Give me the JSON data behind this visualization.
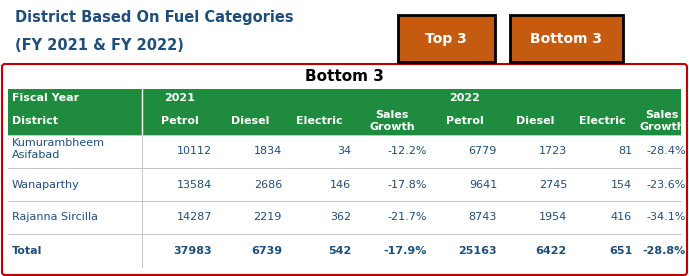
{
  "title_line1": "District Based On Fuel Categories",
  "title_line2": "(FY 2021 & FY 2022)",
  "title_color": "#1F4E79",
  "section_title": "Bottom 3",
  "btn_top3": "Top 3",
  "btn_bottom3": "Bottom 3",
  "btn_color": "#C55A11",
  "btn_text_color": "#FFFFFF",
  "table_border_color": "#C00000",
  "header_bg": "#1E8B3E",
  "header_text_color": "#FFFFFF",
  "header_row1": [
    "Fiscal Year",
    "2021",
    "",
    "",
    "",
    "2022",
    "",
    "",
    ""
  ],
  "header_row2": [
    "District",
    "Petrol",
    "Diesel",
    "Electric",
    "Sales\nGrowth",
    "Petrol",
    "Diesel",
    "Electric",
    "Sales\nGrowth"
  ],
  "data_rows": [
    [
      "Kumurambheem\nAsifabad",
      "10112",
      "1834",
      "34",
      "-12.2%",
      "6779",
      "1723",
      "81",
      "-28.4%"
    ],
    [
      "Wanaparthy",
      "13584",
      "2686",
      "146",
      "-17.8%",
      "9641",
      "2745",
      "154",
      "-23.6%"
    ],
    [
      "Rajanna Sircilla",
      "14287",
      "2219",
      "362",
      "-21.7%",
      "8743",
      "1954",
      "416",
      "-34.1%"
    ],
    [
      "Total",
      "37983",
      "6739",
      "542",
      "-17.9%",
      "25163",
      "6422",
      "651",
      "-28.8%"
    ]
  ],
  "data_text_color": "#1F4E79",
  "col_aligns": [
    "left",
    "right",
    "right",
    "right",
    "right",
    "right",
    "right",
    "right",
    "right"
  ],
  "background_color": "#FFFFFF",
  "fig_width": 6.89,
  "fig_height": 2.76
}
